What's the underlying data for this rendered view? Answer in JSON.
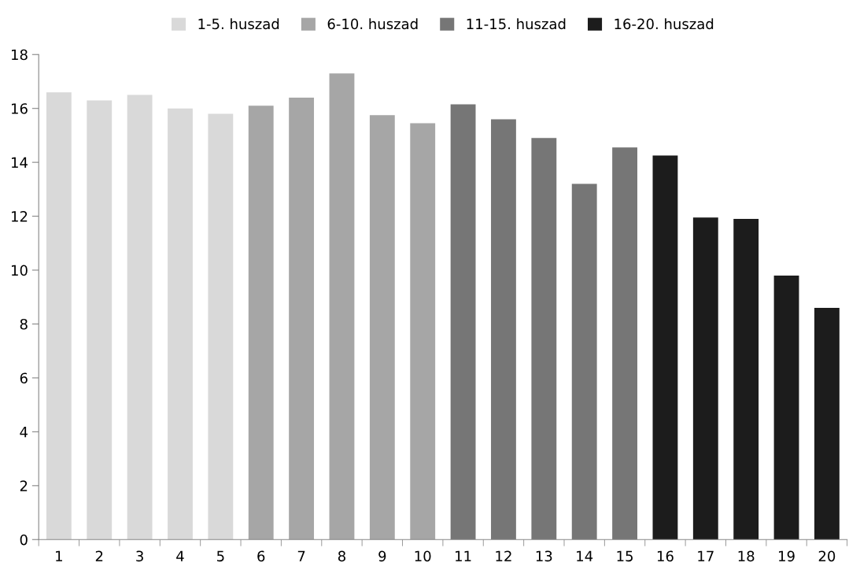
{
  "chart_data": {
    "type": "bar",
    "categories": [
      "1",
      "2",
      "3",
      "4",
      "5",
      "6",
      "7",
      "8",
      "9",
      "10",
      "11",
      "12",
      "13",
      "14",
      "15",
      "16",
      "17",
      "18",
      "19",
      "20"
    ],
    "series": [
      {
        "name": "1-5. huszad",
        "color": "#d9d9d9",
        "values": [
          16.6,
          16.3,
          16.5,
          16.0,
          15.8,
          null,
          null,
          null,
          null,
          null,
          null,
          null,
          null,
          null,
          null,
          null,
          null,
          null,
          null,
          null
        ]
      },
      {
        "name": "6-10. huszad",
        "color": "#a6a6a6",
        "values": [
          null,
          null,
          null,
          null,
          null,
          16.1,
          16.4,
          17.3,
          15.75,
          15.45,
          null,
          null,
          null,
          null,
          null,
          null,
          null,
          null,
          null,
          null
        ]
      },
      {
        "name": "11-15. huszad",
        "color": "#767676",
        "values": [
          null,
          null,
          null,
          null,
          null,
          null,
          null,
          null,
          null,
          null,
          16.15,
          15.6,
          14.9,
          13.2,
          14.55,
          null,
          null,
          null,
          null,
          null
        ]
      },
      {
        "name": "16-20. huszad",
        "color": "#1c1c1c",
        "values": [
          null,
          null,
          null,
          null,
          null,
          null,
          null,
          null,
          null,
          null,
          null,
          null,
          null,
          null,
          null,
          14.25,
          11.95,
          11.9,
          9.8,
          8.6
        ]
      }
    ],
    "ylim": [
      0,
      18
    ],
    "yticks": [
      0,
      2,
      4,
      6,
      8,
      10,
      12,
      14,
      16,
      18
    ],
    "grid": false,
    "legend": "top"
  }
}
